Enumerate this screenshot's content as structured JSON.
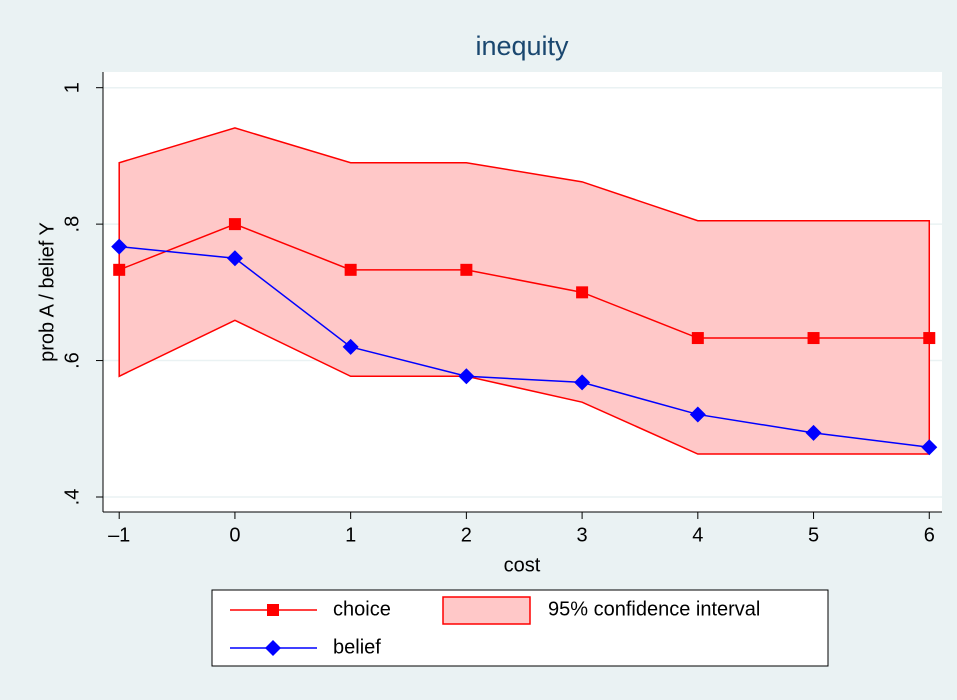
{
  "chart_data": {
    "type": "line",
    "title": "inequity",
    "x_label": "cost",
    "y_label": "prob A / belief Y",
    "x": [
      -1,
      0,
      1,
      2,
      3,
      4,
      5,
      6
    ],
    "series": [
      {
        "name": "choice",
        "color": "#ff0000",
        "marker": "square",
        "values": [
          0.733,
          0.8,
          0.733,
          0.733,
          0.7,
          0.633,
          0.633,
          0.633
        ]
      },
      {
        "name": "95% confidence interval",
        "color": "#ff0000",
        "fill": "#ffc8c8",
        "type": "band",
        "lower": [
          0.577,
          0.659,
          0.577,
          0.577,
          0.539,
          0.463,
          0.463,
          0.463
        ],
        "upper": [
          0.89,
          0.941,
          0.89,
          0.89,
          0.862,
          0.805,
          0.805,
          0.805
        ]
      },
      {
        "name": "belief",
        "color": "#0000ff",
        "marker": "diamond",
        "values": [
          0.767,
          0.75,
          0.62,
          0.577,
          0.568,
          0.521,
          0.494,
          0.473
        ]
      }
    ],
    "xlim": [
      -1.14,
      6.11
    ],
    "xticks": [
      {
        "value": -1,
        "label": "–1"
      },
      0,
      1,
      2,
      3,
      4,
      5,
      6
    ],
    "ylim": [
      0.378,
      1.023
    ],
    "yticks": [
      {
        "value": 0.4,
        "label": ".4"
      },
      {
        "value": 0.6,
        "label": ".6"
      },
      {
        "value": 0.8,
        "label": ".8"
      },
      1
    ],
    "grid": true
  }
}
